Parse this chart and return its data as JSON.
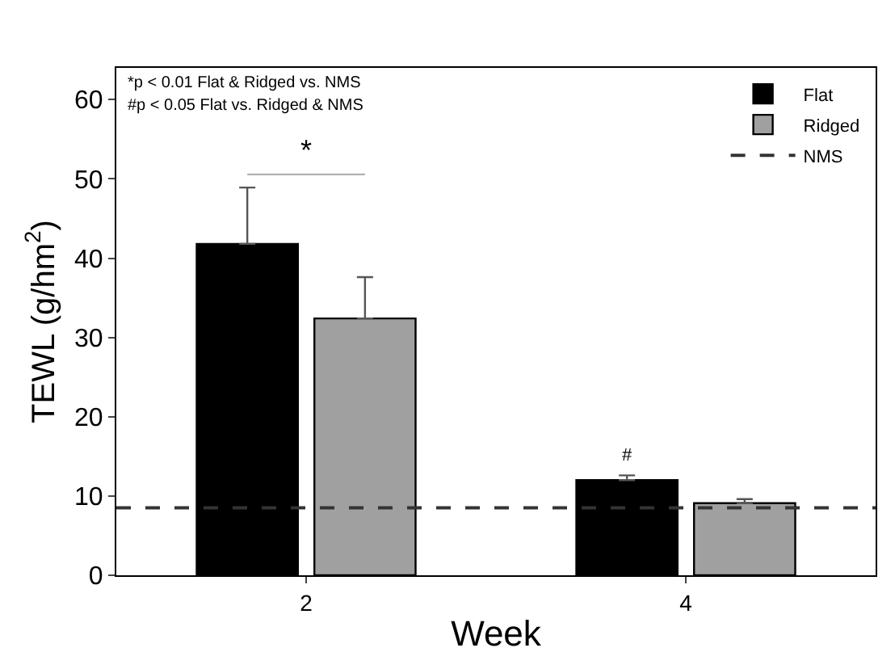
{
  "chart_data": {
    "type": "bar",
    "xlabel": "Week",
    "ylabel": "TEWL (g/hm$^{2}$)",
    "categories": [
      "2",
      "4"
    ],
    "series": [
      {
        "name": "Flat",
        "color": "#000000",
        "values": [
          41.8,
          12.0
        ],
        "errors": [
          [
            41.8,
            48.9
          ],
          [
            12.0,
            12.6
          ]
        ],
        "value_labels": [
          null,
          "#"
        ]
      },
      {
        "name": "Ridged",
        "color": "#a0a0a0",
        "values": [
          32.4,
          9.1
        ],
        "errors": [
          [
            32.4,
            37.6
          ],
          [
            9.1,
            9.6
          ]
        ]
      }
    ],
    "ylim": [
      0,
      64
    ],
    "yticks": [
      0,
      10,
      20,
      30,
      40,
      50,
      60
    ],
    "legend": "top right",
    "ref_lines": [
      {
        "axis": "y",
        "value": 8.5,
        "label": "NMS",
        "color": "#333333",
        "line_style": "dashed"
      }
    ],
    "annotations": [
      "*p < 0.01 Flat & Ridged vs. NMS",
      "#p < 0.05 Flat vs. Ridged & NMS",
      "*"
    ]
  }
}
